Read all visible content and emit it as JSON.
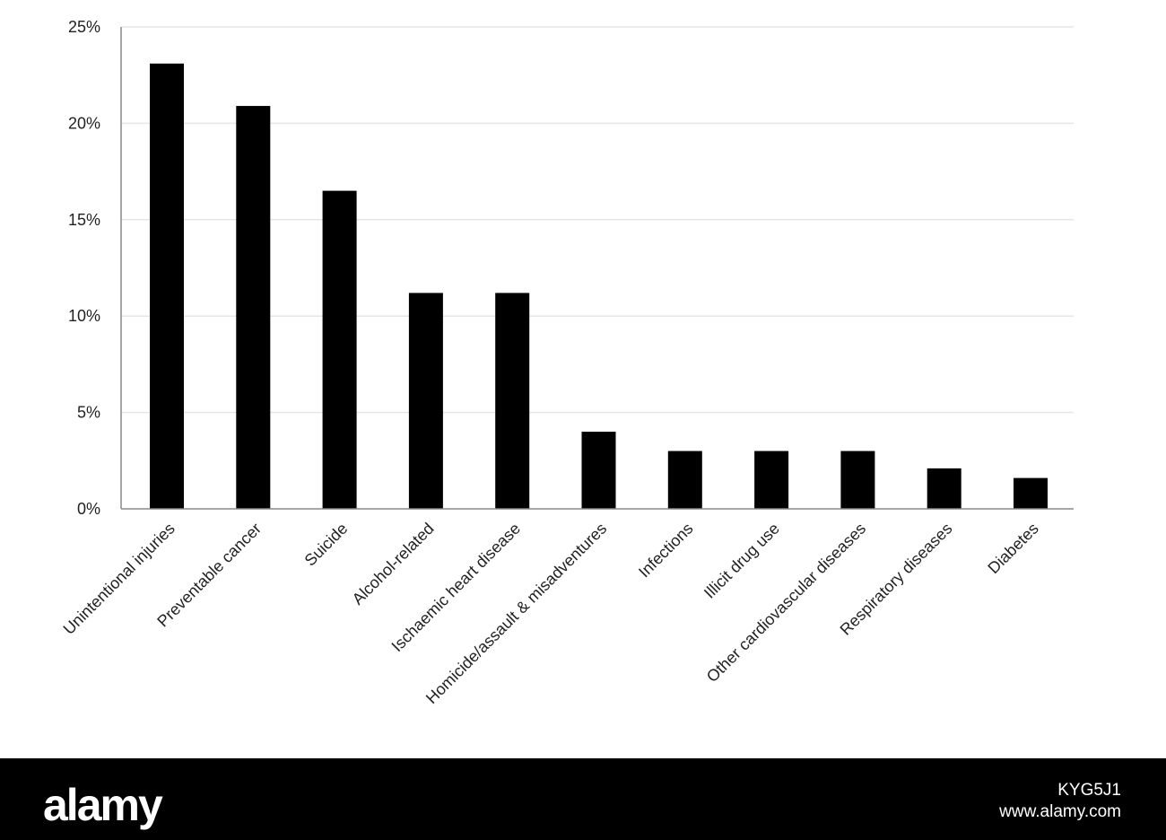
{
  "chart_data": {
    "type": "bar",
    "title": "",
    "xlabel": "",
    "ylabel": "",
    "categories": [
      "Unintentional injuries",
      "Preventable cancer",
      "Suicide",
      "Alcohol-related",
      "Ischaemic heart disease",
      "Homicide/assault & misadventures",
      "Infections",
      "Illicit drug use",
      "Other cardiovascular diseases",
      "Respiratory diseases",
      "Diabetes"
    ],
    "values": [
      23.1,
      20.9,
      16.5,
      11.2,
      11.2,
      4.0,
      3.0,
      3.0,
      3.0,
      2.1,
      1.6
    ],
    "ylim": [
      0,
      25
    ],
    "yticks": [
      0,
      5,
      10,
      15,
      20,
      25
    ],
    "ytick_labels": [
      "0%",
      "5%",
      "10%",
      "15%",
      "20%",
      "25%"
    ],
    "grid": true,
    "bar_color": "#000000",
    "grid_color": "#e6e6e6",
    "axis_color": "#888888"
  },
  "watermark": {
    "logo_text": "alamy",
    "image_id": "KYG5J1",
    "url": "www.alamy.com"
  }
}
